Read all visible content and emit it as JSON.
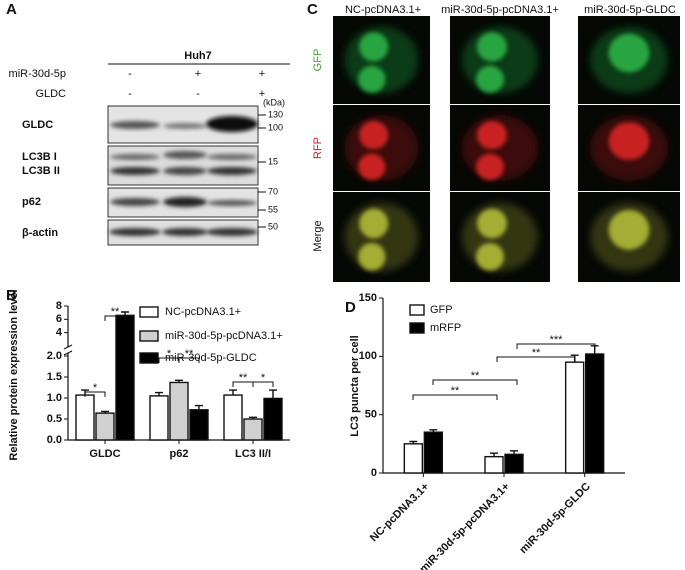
{
  "panels": [
    "A",
    "B",
    "C",
    "D"
  ],
  "western_blot": {
    "cell_line": "Huh7",
    "treatment_labels": [
      "miR-30d-5p",
      "GLDC"
    ],
    "conditions": [
      [
        "-",
        "+",
        "+"
      ],
      [
        "-",
        "-",
        "+"
      ]
    ],
    "band_labels": [
      "GLDC",
      "LC3B I",
      "LC3B II",
      "p62",
      "β-actin"
    ],
    "size_unit": "(kDa)",
    "size_markers": [
      130,
      100,
      15,
      70,
      55,
      50
    ]
  },
  "microscopy": {
    "columns": [
      "NC-pcDNA3.1+",
      "miR-30d-5p-pcDNA3.1+",
      "miR-30d-5p-GLDC"
    ],
    "rows": [
      "GFP",
      "RFP",
      "Merge"
    ]
  },
  "chart_data": [
    {
      "type": "bar",
      "y_label": "Relative protein expression level",
      "categories": [
        "GLDC",
        "p62",
        "LC3 II/I"
      ],
      "series": [
        {
          "name": "NC-pcDNA3.1+",
          "color": "#ffffff",
          "values": [
            1.07,
            1.05,
            1.07
          ],
          "errors": [
            0.12,
            0.08,
            0.12
          ]
        },
        {
          "name": "miR-30d-5p-pcDNA3.1+",
          "color": "#d0d0d0",
          "values": [
            0.64,
            1.37,
            0.5
          ],
          "errors": [
            0.04,
            0.05,
            0.04
          ]
        },
        {
          "name": "miR-30d-5p-GLDC",
          "color": "#000000",
          "values": [
            6.6,
            0.72,
            0.99
          ],
          "errors": [
            0.5,
            0.1,
            0.2
          ]
        }
      ],
      "ylim": [
        0,
        8
      ],
      "ybreak": 2,
      "yticks": [
        {
          "value": 0,
          "label": "0.0"
        },
        0.5,
        {
          "value": 1,
          "label": "1.0"
        },
        1.5,
        {
          "value": 2,
          "label": "2.0"
        },
        4,
        6,
        8
      ],
      "annotations": [
        "*",
        "**",
        "*",
        "**",
        "**",
        "*"
      ]
    },
    {
      "type": "bar",
      "y_label": "LC3 puncta per cell",
      "categories": [
        "NC-pcDNA3.1+",
        "miR-30d-5p-pcDNA3.1+",
        "miR-30d-5p-GLDC"
      ],
      "series": [
        {
          "name": "GFP",
          "color": "#ffffff",
          "values": [
            25,
            14,
            95
          ],
          "errors": [
            2,
            3,
            6
          ]
        },
        {
          "name": "mRFP",
          "color": "#000000",
          "values": [
            35,
            16,
            102
          ],
          "errors": [
            2,
            3,
            7
          ]
        }
      ],
      "ylim": [
        0,
        150
      ],
      "yticks": [
        0,
        50,
        100,
        150
      ],
      "annotations": [
        "**",
        "**",
        "**",
        "***"
      ]
    }
  ]
}
